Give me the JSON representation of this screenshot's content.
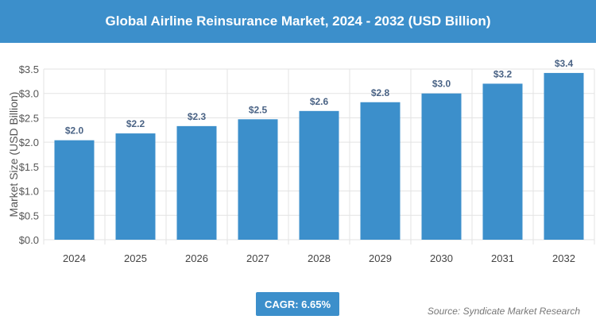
{
  "header": {
    "title": "Global Airline Reinsurance Market, 2024 - 2032 (USD Billion)"
  },
  "chart_data": {
    "type": "bar",
    "title": "Global Airline Reinsurance Market, 2024 - 2032 (USD Billion)",
    "ylabel": "Market Size (USD Billion)",
    "xlabel": "",
    "categories": [
      "2024",
      "2025",
      "2026",
      "2027",
      "2028",
      "2029",
      "2030",
      "2031",
      "2032"
    ],
    "values": [
      2.04,
      2.18,
      2.33,
      2.47,
      2.64,
      2.82,
      3.0,
      3.2,
      3.42
    ],
    "data_labels": [
      "$2.0",
      "$2.2",
      "$2.3",
      "$2.5",
      "$2.6",
      "$2.8",
      "$3.0",
      "$3.2",
      "$3.4"
    ],
    "yticks": [
      "$0.0",
      "$0.5",
      "$1.0",
      "$1.5",
      "$2.0",
      "$2.5",
      "$3.0",
      "$3.5"
    ],
    "ylim": [
      0,
      3.5
    ],
    "grid": true,
    "bar_color": "#3c8fcb"
  },
  "footer": {
    "cagr": "CAGR: 6.65%",
    "source": "Source: Syndicate Market Research"
  }
}
